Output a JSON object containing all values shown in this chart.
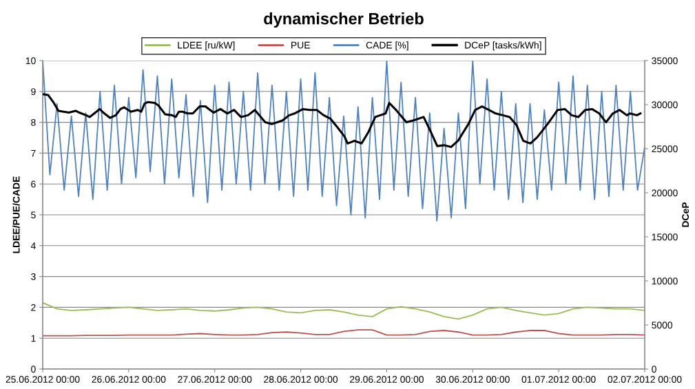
{
  "chart_data": {
    "type": "line",
    "title": "dynamischer Betrieb",
    "ylabel": "LDEE/PUE/CADE",
    "y2label": "DCeP",
    "xlim": [
      "2012-06-25T00:00",
      "2012-07-02T00:00"
    ],
    "xticks": [
      {
        "value": "2012-06-25T00:00",
        "label": "25.06.2012 00:00"
      },
      {
        "value": "2012-06-26T00:00",
        "label": "26.06.2012 00:00"
      },
      {
        "value": "2012-06-27T00:00",
        "label": "27.06.2012 00:00"
      },
      {
        "value": "2012-06-28T00:00",
        "label": "28.06.2012 00:00"
      },
      {
        "value": "2012-06-29T00:00",
        "label": "29.06.2012 00:00"
      },
      {
        "value": "2012-06-30T00:00",
        "label": "30.06.2012 00:00"
      },
      {
        "value": "2012-07-01T00:00",
        "label": "01.07.2012 00:00"
      },
      {
        "value": "2012-07-02T00:00",
        "label": "02.07.2012 00:00"
      }
    ],
    "ylim": [
      0,
      10
    ],
    "yticks": [
      0,
      1,
      2,
      3,
      4,
      5,
      6,
      7,
      8,
      9,
      10
    ],
    "y2lim": [
      0,
      35000
    ],
    "y2ticks": [
      0,
      5000,
      10000,
      15000,
      20000,
      25000,
      30000,
      35000
    ],
    "grid": "y",
    "legend": "top",
    "marker": "none",
    "line_style": "solid",
    "series": [
      {
        "name": "LDEE [ru/kW]",
        "color": "#9bbb59",
        "x": [
          "2012-06-25T00:00",
          "2012-06-25T04:00",
          "2012-06-25T08:00",
          "2012-06-25T12:00",
          "2012-06-25T16:00",
          "2012-06-25T20:00",
          "2012-06-26T00:00",
          "2012-06-26T04:00",
          "2012-06-26T08:00",
          "2012-06-26T12:00",
          "2012-06-26T16:00",
          "2012-06-26T20:00",
          "2012-06-27T00:00",
          "2012-06-27T04:00",
          "2012-06-27T08:00",
          "2012-06-27T12:00",
          "2012-06-27T16:00",
          "2012-06-27T20:00",
          "2012-06-28T00:00",
          "2012-06-28T04:00",
          "2012-06-28T08:00",
          "2012-06-28T12:00",
          "2012-06-28T16:00",
          "2012-06-28T20:00",
          "2012-06-29T00:00",
          "2012-06-29T04:00",
          "2012-06-29T08:00",
          "2012-06-29T12:00",
          "2012-06-29T16:00",
          "2012-06-29T20:00",
          "2012-06-30T00:00",
          "2012-06-30T04:00",
          "2012-06-30T08:00",
          "2012-06-30T12:00",
          "2012-06-30T16:00",
          "2012-06-30T20:00",
          "2012-07-01T00:00",
          "2012-07-01T04:00",
          "2012-07-01T08:00",
          "2012-07-01T12:00",
          "2012-07-01T16:00",
          "2012-07-01T20:00",
          "2012-07-02T00:00"
        ],
        "values": [
          2.15,
          1.95,
          1.9,
          1.92,
          1.95,
          1.98,
          2.0,
          1.95,
          1.9,
          1.92,
          1.95,
          1.9,
          1.88,
          1.92,
          1.98,
          2.0,
          1.95,
          1.85,
          1.82,
          1.9,
          1.92,
          1.85,
          1.75,
          1.7,
          1.95,
          2.02,
          1.95,
          1.85,
          1.7,
          1.62,
          1.75,
          1.95,
          2.0,
          1.9,
          1.82,
          1.75,
          1.8,
          1.95,
          2.0,
          1.98,
          1.95,
          1.95,
          1.9
        ]
      },
      {
        "name": "PUE",
        "color": "#c0504d",
        "x": [
          "2012-06-25T00:00",
          "2012-06-25T04:00",
          "2012-06-25T08:00",
          "2012-06-25T12:00",
          "2012-06-25T16:00",
          "2012-06-25T20:00",
          "2012-06-26T00:00",
          "2012-06-26T04:00",
          "2012-06-26T08:00",
          "2012-06-26T12:00",
          "2012-06-26T16:00",
          "2012-06-26T20:00",
          "2012-06-27T00:00",
          "2012-06-27T04:00",
          "2012-06-27T08:00",
          "2012-06-27T12:00",
          "2012-06-27T16:00",
          "2012-06-27T20:00",
          "2012-06-28T00:00",
          "2012-06-28T04:00",
          "2012-06-28T08:00",
          "2012-06-28T12:00",
          "2012-06-28T16:00",
          "2012-06-28T20:00",
          "2012-06-29T00:00",
          "2012-06-29T04:00",
          "2012-06-29T08:00",
          "2012-06-29T12:00",
          "2012-06-29T16:00",
          "2012-06-29T20:00",
          "2012-06-30T00:00",
          "2012-06-30T04:00",
          "2012-06-30T08:00",
          "2012-06-30T12:00",
          "2012-06-30T16:00",
          "2012-06-30T20:00",
          "2012-07-01T00:00",
          "2012-07-01T04:00",
          "2012-07-01T08:00",
          "2012-07-01T12:00",
          "2012-07-01T16:00",
          "2012-07-01T20:00",
          "2012-07-02T00:00"
        ],
        "values": [
          1.08,
          1.08,
          1.08,
          1.09,
          1.09,
          1.09,
          1.1,
          1.1,
          1.1,
          1.1,
          1.13,
          1.15,
          1.12,
          1.1,
          1.1,
          1.12,
          1.18,
          1.2,
          1.17,
          1.12,
          1.12,
          1.22,
          1.27,
          1.27,
          1.1,
          1.1,
          1.12,
          1.22,
          1.25,
          1.2,
          1.1,
          1.1,
          1.12,
          1.2,
          1.25,
          1.25,
          1.15,
          1.1,
          1.1,
          1.1,
          1.12,
          1.12,
          1.1
        ]
      },
      {
        "name": "CADE [%]",
        "color": "#4f81bd",
        "x": [
          "2012-06-25T00:00",
          "2012-06-25T02:00",
          "2012-06-25T04:00",
          "2012-06-25T06:00",
          "2012-06-25T08:00",
          "2012-06-25T10:00",
          "2012-06-25T12:00",
          "2012-06-25T14:00",
          "2012-06-25T16:00",
          "2012-06-25T18:00",
          "2012-06-25T20:00",
          "2012-06-25T22:00",
          "2012-06-26T00:00",
          "2012-06-26T02:00",
          "2012-06-26T04:00",
          "2012-06-26T06:00",
          "2012-06-26T08:00",
          "2012-06-26T10:00",
          "2012-06-26T12:00",
          "2012-06-26T14:00",
          "2012-06-26T16:00",
          "2012-06-26T18:00",
          "2012-06-26T20:00",
          "2012-06-26T22:00",
          "2012-06-27T00:00",
          "2012-06-27T02:00",
          "2012-06-27T04:00",
          "2012-06-27T06:00",
          "2012-06-27T08:00",
          "2012-06-27T10:00",
          "2012-06-27T12:00",
          "2012-06-27T14:00",
          "2012-06-27T16:00",
          "2012-06-27T18:00",
          "2012-06-27T20:00",
          "2012-06-27T22:00",
          "2012-06-28T00:00",
          "2012-06-28T02:00",
          "2012-06-28T04:00",
          "2012-06-28T06:00",
          "2012-06-28T08:00",
          "2012-06-28T10:00",
          "2012-06-28T12:00",
          "2012-06-28T14:00",
          "2012-06-28T16:00",
          "2012-06-28T18:00",
          "2012-06-28T20:00",
          "2012-06-28T22:00",
          "2012-06-29T00:00",
          "2012-06-29T02:00",
          "2012-06-29T04:00",
          "2012-06-29T06:00",
          "2012-06-29T08:00",
          "2012-06-29T10:00",
          "2012-06-29T12:00",
          "2012-06-29T14:00",
          "2012-06-29T16:00",
          "2012-06-29T18:00",
          "2012-06-29T20:00",
          "2012-06-29T22:00",
          "2012-06-30T00:00",
          "2012-06-30T02:00",
          "2012-06-30T04:00",
          "2012-06-30T06:00",
          "2012-06-30T08:00",
          "2012-06-30T10:00",
          "2012-06-30T12:00",
          "2012-06-30T14:00",
          "2012-06-30T16:00",
          "2012-06-30T18:00",
          "2012-06-30T20:00",
          "2012-06-30T22:00",
          "2012-07-01T00:00",
          "2012-07-01T02:00",
          "2012-07-01T04:00",
          "2012-07-01T06:00",
          "2012-07-01T08:00",
          "2012-07-01T10:00",
          "2012-07-01T12:00",
          "2012-07-01T14:00",
          "2012-07-01T16:00",
          "2012-07-01T18:00",
          "2012-07-01T20:00",
          "2012-07-01T22:00",
          "2012-07-02T00:00"
        ],
        "values": [
          10,
          6.3,
          8.6,
          5.8,
          8.2,
          5.6,
          8.3,
          5.5,
          9.0,
          5.8,
          9.2,
          6.0,
          8.8,
          6.2,
          9.7,
          6.4,
          9.5,
          6.0,
          9.4,
          6.2,
          8.9,
          5.6,
          8.7,
          5.4,
          9.2,
          5.8,
          9.3,
          6.0,
          9.0,
          5.8,
          9.6,
          6.0,
          9.2,
          5.8,
          9.0,
          5.6,
          9.4,
          5.8,
          9.6,
          5.6,
          8.8,
          5.3,
          8.2,
          5.0,
          8.5,
          4.9,
          8.8,
          5.5,
          10.0,
          5.8,
          9.3,
          5.6,
          8.8,
          5.2,
          8.3,
          4.8,
          7.8,
          4.9,
          8.3,
          5.2,
          10.0,
          6.0,
          9.4,
          5.8,
          9.0,
          5.5,
          8.6,
          5.4,
          8.6,
          5.5,
          8.4,
          5.8,
          9.3,
          6.0,
          9.5,
          5.8,
          9.2,
          5.5,
          9.0,
          5.6,
          9.2,
          5.8,
          9.0,
          5.8,
          7.2
        ]
      },
      {
        "name": "DCeP [tasks/kWh]",
        "color": "#000000",
        "axis": "y2",
        "x": [
          "2012-06-25T00:00",
          "2012-06-25T01:30",
          "2012-06-25T03:06",
          "2012-06-25T04:24",
          "2012-06-25T07:18",
          "2012-06-25T09:12",
          "2012-06-25T10:12",
          "2012-06-25T12:06",
          "2012-06-25T13:06",
          "2012-06-25T15:00",
          "2012-06-25T15:54",
          "2012-06-25T16:54",
          "2012-06-25T18:48",
          "2012-06-25T20:24",
          "2012-06-25T21:42",
          "2012-06-25T22:42",
          "2012-06-26T00:36",
          "2012-06-26T02:30",
          "2012-06-26T03:30",
          "2012-06-26T04:24",
          "2012-06-26T05:24",
          "2012-06-26T07:18",
          "2012-06-26T08:18",
          "2012-06-26T10:12",
          "2012-06-26T12:06",
          "2012-06-26T13:06",
          "2012-06-26T14:00",
          "2012-06-26T15:00",
          "2012-06-26T16:24",
          "2012-06-26T17:54",
          "2012-06-26T19:48",
          "2012-06-26T21:24",
          "2012-06-26T22:42",
          "2012-06-26T23:42",
          "2012-06-27T01:36",
          "2012-06-27T03:30",
          "2012-06-27T05:24",
          "2012-06-27T07:18",
          "2012-06-27T09:18",
          "2012-06-27T11:12",
          "2012-06-27T14:06",
          "2012-06-27T16:00",
          "2012-06-27T18:54",
          "2012-06-27T20:48",
          "2012-06-27T22:18",
          "2012-06-28T00:36",
          "2012-06-28T02:36",
          "2012-06-28T04:30",
          "2012-06-28T06:24",
          "2012-06-28T08:18",
          "2012-06-28T10:18",
          "2012-06-28T12:12",
          "2012-06-28T13:06",
          "2012-06-28T15:00",
          "2012-06-28T17:00",
          "2012-06-28T18:54",
          "2012-06-28T20:48",
          "2012-06-28T23:42",
          "2012-06-29T00:42",
          "2012-06-29T02:36",
          "2012-06-29T05:30",
          "2012-06-29T07:24",
          "2012-06-29T10:18",
          "2012-06-29T12:12",
          "2012-06-29T14:06",
          "2012-06-29T16:00",
          "2012-06-29T18:00",
          "2012-06-29T19:54",
          "2012-06-29T22:48",
          "2012-06-30T00:42",
          "2012-06-30T02:36",
          "2012-06-30T04:30",
          "2012-06-30T06:24",
          "2012-06-30T08:24",
          "2012-06-30T10:18",
          "2012-06-30T12:12",
          "2012-06-30T14:06",
          "2012-06-30T16:06",
          "2012-06-30T18:00",
          "2012-06-30T20:54",
          "2012-06-30T23:42",
          "2012-07-01T01:42",
          "2012-07-01T03:36",
          "2012-07-01T05:30",
          "2012-07-01T07:24",
          "2012-07-01T09:18",
          "2012-07-01T11:18",
          "2012-07-01T13:12",
          "2012-07-01T15:06",
          "2012-07-01T17:00",
          "2012-07-01T19:00",
          "2012-07-01T19:54",
          "2012-07-01T21:48",
          "2012-07-01T22:48"
        ],
        "values": [
          31200,
          31100,
          30200,
          29300,
          29100,
          29300,
          29100,
          28800,
          28600,
          29200,
          29500,
          29100,
          28500,
          28800,
          29500,
          29700,
          29200,
          29400,
          29200,
          30100,
          30300,
          30200,
          29900,
          28900,
          28800,
          28600,
          29200,
          29200,
          29000,
          29000,
          29800,
          29800,
          29400,
          29100,
          29500,
          29000,
          29400,
          28600,
          28800,
          29400,
          28000,
          27800,
          28200,
          28800,
          29000,
          29500,
          29400,
          29400,
          28800,
          28400,
          27400,
          26400,
          25600,
          25900,
          25600,
          26900,
          28600,
          29000,
          30200,
          29400,
          28000,
          28200,
          28600,
          27000,
          25300,
          25400,
          25200,
          25900,
          27800,
          29400,
          29800,
          29400,
          29000,
          28800,
          28600,
          27700,
          25900,
          25600,
          26300,
          27800,
          29400,
          29500,
          28800,
          28600,
          29400,
          29500,
          29000,
          28000,
          29000,
          29400,
          28800,
          29000,
          28800,
          29000
        ]
      }
    ]
  }
}
